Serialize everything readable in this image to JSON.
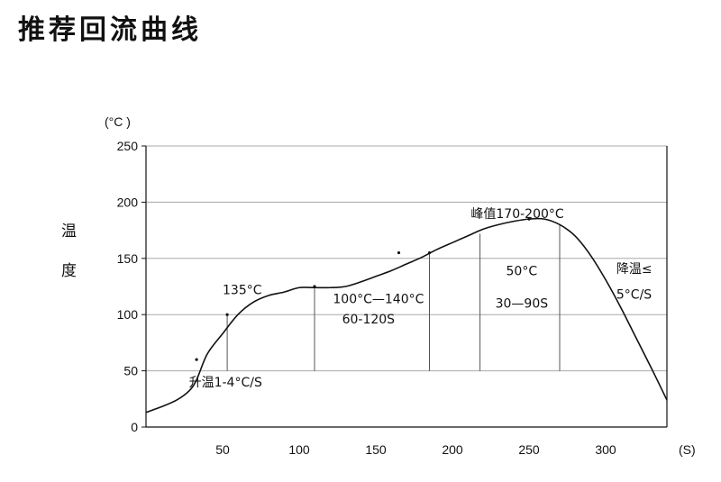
{
  "title": "推荐回流曲线",
  "chart_data": {
    "type": "line",
    "ylabel_top": "温",
    "ylabel_bottom": "度",
    "y_unit": "(°C )",
    "x_unit": "(S)",
    "xlim": [
      0,
      340
    ],
    "ylim": [
      0,
      250
    ],
    "xticks": [
      50,
      100,
      150,
      200,
      250,
      300
    ],
    "yticks": [
      0,
      50,
      100,
      150,
      200,
      250
    ],
    "grid": "horizontal",
    "series": [
      {
        "x": [
          0,
          10,
          20,
          28,
          33,
          40,
          50,
          60,
          70,
          80,
          90,
          100,
          110,
          120,
          130,
          140,
          150,
          160,
          170,
          180,
          190,
          200,
          210,
          220,
          230,
          240,
          250,
          260,
          270,
          280,
          290,
          300,
          310,
          320,
          330,
          340
        ],
        "y": [
          13,
          18,
          24,
          32,
          42,
          65,
          83,
          100,
          111,
          117,
          120,
          124,
          124,
          124,
          125,
          129,
          134,
          139,
          145,
          151,
          158,
          164,
          170,
          176,
          180,
          183,
          185,
          185,
          180,
          170,
          153,
          131,
          106,
          79,
          52,
          24
        ]
      }
    ],
    "markers": [
      {
        "x": 33,
        "y": 60
      },
      {
        "x": 53,
        "y": 100
      },
      {
        "x": 110,
        "y": 125
      },
      {
        "x": 165,
        "y": 155
      },
      {
        "x": 185,
        "y": 155
      },
      {
        "x": 250,
        "y": 185
      }
    ],
    "vlines": [
      {
        "x": 53,
        "y": 100
      },
      {
        "x": 110,
        "y": 125
      },
      {
        "x": 185,
        "y": 155
      },
      {
        "x": 218,
        "y": 172
      },
      {
        "x": 270,
        "y": 180
      }
    ],
    "annotations": [
      {
        "text": "135°C",
        "x": 50,
        "y": 118
      },
      {
        "text": "100°C—140°C",
        "x": 122,
        "y": 110
      },
      {
        "text": "60-120S",
        "x": 128,
        "y": 92
      },
      {
        "text": "升温1-4°C/S",
        "x": 28,
        "y": 36
      },
      {
        "text": "峰值170-200°C",
        "x": 212,
        "y": 186
      },
      {
        "text": "50°C",
        "x": 235,
        "y": 135
      },
      {
        "text": "30—90S",
        "x": 228,
        "y": 106
      },
      {
        "text": "降温≤",
        "x": 307,
        "y": 137
      },
      {
        "text": "5°C/S",
        "x": 307,
        "y": 114
      }
    ]
  }
}
